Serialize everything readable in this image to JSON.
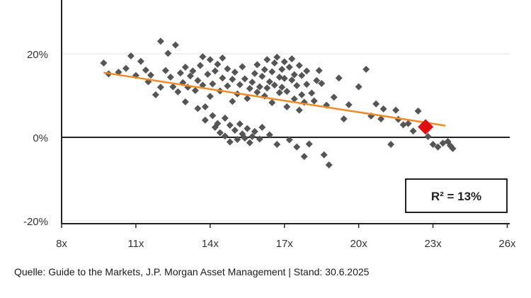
{
  "chart_data": {
    "type": "scatter",
    "xlim": [
      8,
      26
    ],
    "ylim": [
      -20,
      30
    ],
    "x_ticks": [
      {
        "value": 8,
        "label": "8x"
      },
      {
        "value": 11,
        "label": "11x"
      },
      {
        "value": 14,
        "label": "14x"
      },
      {
        "value": 17,
        "label": "17x"
      },
      {
        "value": 20,
        "label": "20x"
      },
      {
        "value": 23,
        "label": "23x"
      },
      {
        "value": 26,
        "label": "26x"
      }
    ],
    "y_ticks": [
      {
        "value": 20,
        "label": "20%"
      },
      {
        "value": 0,
        "label": "0%"
      },
      {
        "value": -20,
        "label": "-20%"
      }
    ],
    "grid": "horizontal",
    "points": [
      [
        9.7,
        17.8
      ],
      [
        9.9,
        15.2
      ],
      [
        10.3,
        15.6
      ],
      [
        10.6,
        16.5
      ],
      [
        10.8,
        19.5
      ],
      [
        11.0,
        14.8
      ],
      [
        11.2,
        18.2
      ],
      [
        11.4,
        16.1
      ],
      [
        11.5,
        13.3
      ],
      [
        11.6,
        14.9
      ],
      [
        11.8,
        10.2
      ],
      [
        12.0,
        23.0
      ],
      [
        12.0,
        12.0
      ],
      [
        12.2,
        16.0
      ],
      [
        12.3,
        20.1
      ],
      [
        12.4,
        14.4
      ],
      [
        12.5,
        12.1
      ],
      [
        12.6,
        22.1
      ],
      [
        12.7,
        10.9
      ],
      [
        12.8,
        15.4
      ],
      [
        12.9,
        13.1
      ],
      [
        13.0,
        8.5
      ],
      [
        13.0,
        16.8
      ],
      [
        13.1,
        12.0
      ],
      [
        13.2,
        14.7
      ],
      [
        13.3,
        15.9
      ],
      [
        13.4,
        11.2
      ],
      [
        13.5,
        13.6
      ],
      [
        13.5,
        6.9
      ],
      [
        13.6,
        17.2
      ],
      [
        13.7,
        12.5
      ],
      [
        13.7,
        19.3
      ],
      [
        13.8,
        7.3
      ],
      [
        13.8,
        4.1
      ],
      [
        13.9,
        15.1
      ],
      [
        14.0,
        9.8
      ],
      [
        14.0,
        18.6
      ],
      [
        14.1,
        5.2
      ],
      [
        14.1,
        12.8
      ],
      [
        14.2,
        2.4
      ],
      [
        14.2,
        15.9
      ],
      [
        14.3,
        3.3
      ],
      [
        14.3,
        17.5
      ],
      [
        14.4,
        11.1
      ],
      [
        14.4,
        1.1
      ],
      [
        14.5,
        14.2
      ],
      [
        14.5,
        19.0
      ],
      [
        14.6,
        4.6
      ],
      [
        14.6,
        0.3
      ],
      [
        14.7,
        12.3
      ],
      [
        14.7,
        16.4
      ],
      [
        14.8,
        2.9
      ],
      [
        14.8,
        -1.1
      ],
      [
        14.9,
        13.9
      ],
      [
        14.9,
        8.6
      ],
      [
        15.0,
        1.7
      ],
      [
        15.0,
        15.6
      ],
      [
        15.1,
        -0.5
      ],
      [
        15.1,
        10.4
      ],
      [
        15.2,
        3.2
      ],
      [
        15.2,
        12.6
      ],
      [
        15.3,
        0.8
      ],
      [
        15.3,
        16.9
      ],
      [
        15.4,
        -0.2
      ],
      [
        15.4,
        14.0
      ],
      [
        15.5,
        2.1
      ],
      [
        15.5,
        9.3
      ],
      [
        15.6,
        11.7
      ],
      [
        15.6,
        -1.3
      ],
      [
        15.7,
        13.2
      ],
      [
        15.7,
        0.2
      ],
      [
        15.8,
        15.3
      ],
      [
        15.8,
        1.4
      ],
      [
        15.9,
        10.8
      ],
      [
        15.9,
        17.4
      ],
      [
        16.0,
        12.1
      ],
      [
        16.0,
        -0.4
      ],
      [
        16.1,
        14.6
      ],
      [
        16.1,
        2.4
      ],
      [
        16.2,
        9.9
      ],
      [
        16.2,
        16.2
      ],
      [
        16.3,
        11.8
      ],
      [
        16.3,
        18.6
      ],
      [
        16.4,
        13.3
      ],
      [
        16.4,
        0.6
      ],
      [
        16.5,
        15.7
      ],
      [
        16.5,
        8.3
      ],
      [
        16.6,
        17.8
      ],
      [
        16.6,
        12.5
      ],
      [
        16.7,
        19.2
      ],
      [
        16.7,
        -1.7
      ],
      [
        16.8,
        14.4
      ],
      [
        16.8,
        10.7
      ],
      [
        16.9,
        16.3
      ],
      [
        16.9,
        12.0
      ],
      [
        17.0,
        18.1
      ],
      [
        17.0,
        14.1
      ],
      [
        17.1,
        11.0
      ],
      [
        17.1,
        7.3
      ],
      [
        17.2,
        16.8
      ],
      [
        17.2,
        -0.6
      ],
      [
        17.3,
        13.7
      ],
      [
        17.3,
        18.8
      ],
      [
        17.4,
        9.2
      ],
      [
        17.4,
        15.0
      ],
      [
        17.5,
        12.4
      ],
      [
        17.5,
        -2.3
      ],
      [
        17.6,
        17.2
      ],
      [
        17.6,
        6.5
      ],
      [
        17.7,
        10.2
      ],
      [
        17.7,
        14.8
      ],
      [
        17.8,
        -4.6
      ],
      [
        17.8,
        8.4
      ],
      [
        17.9,
        15.9
      ],
      [
        17.9,
        12.7
      ],
      [
        18.0,
        -1.6
      ],
      [
        18.1,
        10.6
      ],
      [
        18.2,
        8.7
      ],
      [
        18.3,
        13.6
      ],
      [
        18.4,
        16.0
      ],
      [
        18.5,
        12.9
      ],
      [
        18.6,
        -4.2
      ],
      [
        18.7,
        7.7
      ],
      [
        18.8,
        -6.6
      ],
      [
        19.0,
        9.6
      ],
      [
        19.2,
        14.2
      ],
      [
        19.4,
        4.4
      ],
      [
        19.6,
        7.8
      ],
      [
        20.0,
        12.1
      ],
      [
        20.3,
        16.3
      ],
      [
        20.5,
        5.1
      ],
      [
        20.7,
        8.0
      ],
      [
        20.9,
        4.4
      ],
      [
        21.0,
        6.8
      ],
      [
        21.3,
        -1.7
      ],
      [
        21.5,
        6.5
      ],
      [
        21.6,
        4.3
      ],
      [
        21.8,
        3.0
      ],
      [
        22.0,
        3.3
      ],
      [
        22.2,
        1.5
      ],
      [
        22.4,
        6.3
      ],
      [
        22.6,
        2.3
      ],
      [
        22.8,
        0.2
      ],
      [
        23.0,
        -1.7
      ],
      [
        23.2,
        -2.3
      ],
      [
        23.4,
        -1.4
      ],
      [
        23.6,
        -1.0
      ],
      [
        23.7,
        -2.0
      ],
      [
        23.8,
        -2.7
      ]
    ],
    "highlight_point": {
      "x": 22.7,
      "y": 2.5
    },
    "regression_line": {
      "x": [
        9.7,
        23.5
      ],
      "y": [
        15.5,
        2.8
      ]
    },
    "annotation": "R² = 13%",
    "colors": {
      "points": "#555555",
      "highlight": "#e01010",
      "trendline": "#f08a24",
      "axis": "#222222",
      "grid": "#e6e6e6"
    }
  },
  "source_text": "Quelle: Guide to the Markets, J.P. Morgan Asset Management | Stand: 30.6.2025"
}
